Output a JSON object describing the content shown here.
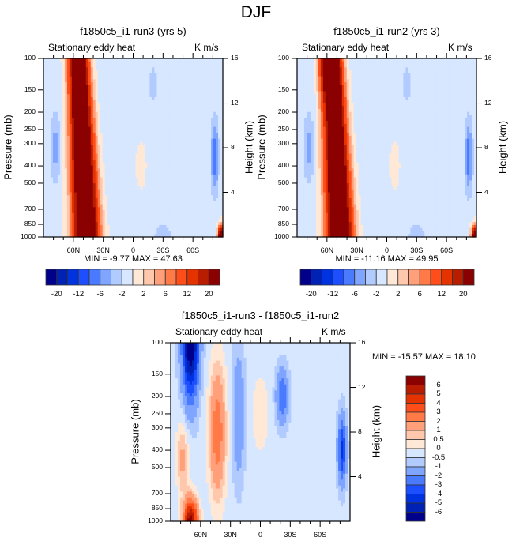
{
  "figure": {
    "title": "DJF"
  },
  "palette": {
    "colors": [
      "#00008b",
      "#0022b4",
      "#0033e0",
      "#1e4fff",
      "#4a7bff",
      "#7fa5ff",
      "#b2cbff",
      "#d6e7ff",
      "#ffe8d6",
      "#ffc8ad",
      "#ffa07a",
      "#ff7a47",
      "#ff4e1a",
      "#e53300",
      "#b81d00",
      "#8b0000"
    ]
  },
  "chart_data": [
    {
      "type": "heatmap",
      "id": "panel-run3",
      "title": "f1850c5_i1-run3 (yrs 5)",
      "left_string": "Stationary eddy heat",
      "right_string": "K m/s",
      "ylabel": "Pressure (mb)",
      "ylabel_right": "Height (km)",
      "yticks": [
        "100",
        "150",
        "200",
        "250",
        "300",
        "400",
        "500",
        "700",
        "850",
        "1000"
      ],
      "yticks_right": [
        "16",
        "12",
        "8",
        "4"
      ],
      "xticks": [
        "60N",
        "30N",
        "0",
        "30S",
        "60S"
      ],
      "min_max_text": "MIN =  -9.77  MAX =  47.63",
      "min": -9.77,
      "max": 47.63,
      "colorbar": {
        "orientation": "horizontal",
        "levels": [
          -20,
          -16,
          -12,
          -8,
          -6,
          -4,
          -2,
          0,
          2,
          4,
          6,
          8,
          12,
          16,
          20
        ],
        "labels": [
          "-20",
          "-12",
          "-6",
          "-2",
          "2",
          "6",
          "12",
          "20"
        ]
      }
    },
    {
      "type": "heatmap",
      "id": "panel-run2",
      "title": "f1850c5_i1-run2 (yrs 3)",
      "left_string": "Stationary eddy heat",
      "right_string": "K m/s",
      "ylabel": "Pressure (mb)",
      "ylabel_right": "Height (km)",
      "yticks": [
        "100",
        "150",
        "200",
        "250",
        "300",
        "400",
        "500",
        "700",
        "850",
        "1000"
      ],
      "yticks_right": [
        "16",
        "12",
        "8",
        "4"
      ],
      "xticks": [
        "60N",
        "30N",
        "0",
        "30S",
        "60S"
      ],
      "min_max_text": "MIN = -11.16  MAX =  49.95",
      "min": -11.16,
      "max": 49.95,
      "colorbar": {
        "orientation": "horizontal",
        "levels": [
          -20,
          -16,
          -12,
          -8,
          -6,
          -4,
          -2,
          0,
          2,
          4,
          6,
          8,
          12,
          16,
          20
        ],
        "labels": [
          "-20",
          "-12",
          "-6",
          "-2",
          "2",
          "6",
          "12",
          "20"
        ]
      }
    },
    {
      "type": "heatmap",
      "id": "panel-diff",
      "title": "f1850c5_i1-run3 - f1850c5_i1-run2",
      "left_string": "Stationary eddy heat",
      "right_string": "K m/s",
      "ylabel": "Pressure (mb)",
      "ylabel_right": "Height (km)",
      "yticks": [
        "100",
        "150",
        "200",
        "250",
        "300",
        "400",
        "500",
        "700",
        "850",
        "1000"
      ],
      "yticks_right": [
        "16",
        "12",
        "8",
        "4"
      ],
      "xticks": [
        "60N",
        "30N",
        "0",
        "30S",
        "60S"
      ],
      "min_max_text": "MIN = -15.57  MAX =  18.10",
      "min": -15.57,
      "max": 18.1,
      "colorbar": {
        "orientation": "vertical",
        "levels": [
          6,
          5,
          4,
          3,
          2,
          1,
          0.5,
          0,
          -0.5,
          -1,
          -2,
          -3,
          -4,
          -5,
          -6
        ],
        "labels": [
          "6",
          "5",
          "4",
          "3",
          "2",
          "1",
          "0.5",
          "0",
          "-0.5",
          "-1",
          "-2",
          "-3",
          "-4",
          "-5",
          "-6"
        ]
      }
    }
  ]
}
